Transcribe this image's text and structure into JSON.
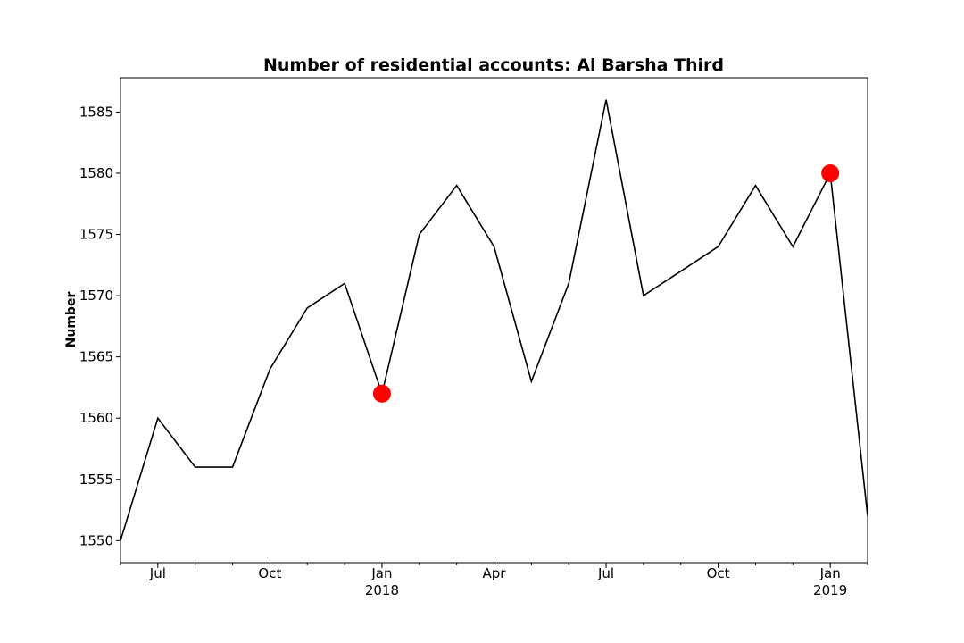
{
  "chart_data": {
    "type": "line",
    "title": "Number of residential accounts: Al Barsha Third",
    "xlabel": "",
    "ylabel": "Number",
    "x": [
      "2017-06",
      "2017-07",
      "2017-08",
      "2017-09",
      "2017-10",
      "2017-11",
      "2017-12",
      "2018-01",
      "2018-02",
      "2018-03",
      "2018-04",
      "2018-05",
      "2018-06",
      "2018-07",
      "2018-08",
      "2018-09",
      "2018-10",
      "2018-11",
      "2018-12",
      "2019-01",
      "2019-02"
    ],
    "series": [
      {
        "values": [
          1550,
          1560,
          1556,
          1556,
          1564,
          1569,
          1571,
          1562,
          1575,
          1579,
          1574,
          1563,
          1571,
          1586,
          1570,
          1572,
          1574,
          1579,
          1574,
          1580,
          1552
        ],
        "color": "#000000"
      }
    ],
    "highlighted_points": [
      {
        "x": "2018-01",
        "y": 1562,
        "color": "#ff0000"
      },
      {
        "x": "2019-01",
        "y": 1580,
        "color": "#ff0000"
      }
    ],
    "ylim": [
      1548.2,
      1587.8
    ],
    "xlim": [
      "2017-06",
      "2019-02"
    ],
    "y_ticks": [
      1550,
      1555,
      1560,
      1565,
      1570,
      1575,
      1580,
      1585
    ],
    "x_ticks": [
      {
        "x": "2017-07",
        "label": "Jul",
        "sublabel": ""
      },
      {
        "x": "2017-10",
        "label": "Oct",
        "sublabel": ""
      },
      {
        "x": "2018-01",
        "label": "Jan",
        "sublabel": "2018"
      },
      {
        "x": "2018-04",
        "label": "Apr",
        "sublabel": ""
      },
      {
        "x": "2018-07",
        "label": "Jul",
        "sublabel": ""
      },
      {
        "x": "2018-10",
        "label": "Oct",
        "sublabel": ""
      },
      {
        "x": "2019-01",
        "label": "Jan",
        "sublabel": "2019"
      }
    ],
    "grid": false,
    "legend": false
  }
}
